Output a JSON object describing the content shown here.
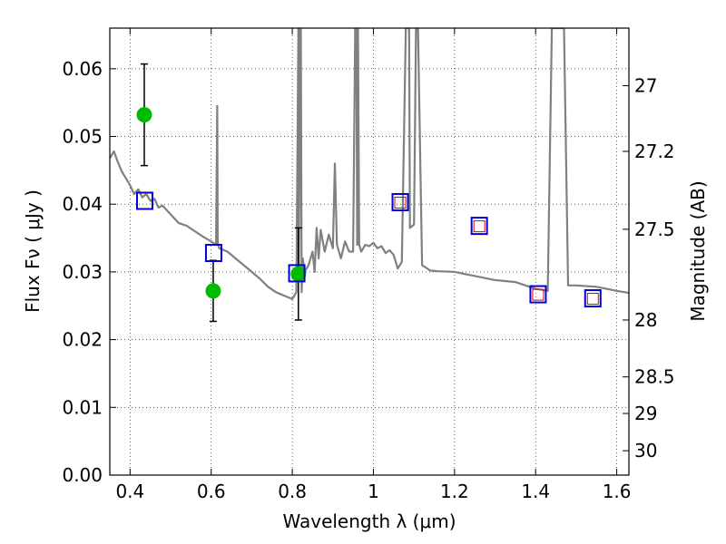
{
  "chart_data": {
    "type": "line",
    "title": "",
    "xlabel": "Wavelength  λ (μm)",
    "ylabel": "Flux  Fν  ( μJy )",
    "ylabel_right": "Magnitude (AB)",
    "xlim": [
      0.35,
      1.63
    ],
    "ylim": [
      0.0,
      0.066
    ],
    "grid": true,
    "x_ticks": [
      0.4,
      0.6,
      0.8,
      1.0,
      1.2,
      1.4,
      1.6
    ],
    "x_tick_labels": [
      "0.4",
      "0.6",
      "0.8",
      "1",
      "1.2",
      "1.4",
      "1.6"
    ],
    "y_ticks": [
      0.0,
      0.01,
      0.02,
      0.03,
      0.04,
      0.05,
      0.06
    ],
    "y_tick_labels": [
      "0.00",
      "0.01",
      "0.02",
      "0.03",
      "0.04",
      "0.05",
      "0.06"
    ],
    "mag_ticks": [
      {
        "label": "27",
        "flux": 0.0575
      },
      {
        "label": "27.2",
        "flux": 0.0478
      },
      {
        "label": "27.5",
        "flux": 0.0363
      },
      {
        "label": "28",
        "flux": 0.0229
      },
      {
        "label": "28.5",
        "flux": 0.0145
      },
      {
        "label": "29",
        "flux": 0.0091
      },
      {
        "label": "30",
        "flux": 0.0036
      }
    ],
    "series": [
      {
        "name": "model SED",
        "kind": "line",
        "color": "#808080",
        "x": [
          0.35,
          0.36,
          0.37,
          0.38,
          0.39,
          0.4,
          0.41,
          0.42,
          0.43,
          0.44,
          0.45,
          0.46,
          0.47,
          0.48,
          0.5,
          0.52,
          0.54,
          0.56,
          0.58,
          0.6,
          0.612,
          0.615,
          0.616,
          0.618,
          0.62,
          0.64,
          0.66,
          0.68,
          0.7,
          0.72,
          0.74,
          0.76,
          0.78,
          0.8,
          0.81,
          0.815,
          0.816,
          0.82,
          0.821,
          0.823,
          0.826,
          0.83,
          0.84,
          0.85,
          0.855,
          0.86,
          0.865,
          0.87,
          0.88,
          0.89,
          0.9,
          0.905,
          0.91,
          0.92,
          0.93,
          0.94,
          0.95,
          0.955,
          0.958,
          0.96,
          0.962,
          0.965,
          0.97,
          0.98,
          0.99,
          1.0,
          1.01,
          1.02,
          1.03,
          1.04,
          1.05,
          1.06,
          1.07,
          1.08,
          1.085,
          1.088,
          1.09,
          1.1,
          1.105,
          1.11,
          1.12,
          1.14,
          1.16,
          1.2,
          1.25,
          1.3,
          1.35,
          1.4,
          1.43,
          1.44,
          1.445,
          1.45,
          1.455,
          1.46,
          1.47,
          1.48,
          1.5,
          1.55,
          1.6,
          1.63
        ],
        "y": [
          0.0468,
          0.0478,
          0.0462,
          0.0448,
          0.0438,
          0.0428,
          0.0415,
          0.0422,
          0.041,
          0.0415,
          0.0405,
          0.0408,
          0.0395,
          0.0398,
          0.0385,
          0.0372,
          0.0368,
          0.036,
          0.0352,
          0.0345,
          0.034,
          0.0545,
          0.0345,
          0.0338,
          0.0335,
          0.033,
          0.032,
          0.031,
          0.03,
          0.029,
          0.0278,
          0.027,
          0.0265,
          0.026,
          0.027,
          0.066,
          0.03,
          0.066,
          0.066,
          0.027,
          0.032,
          0.03,
          0.031,
          0.033,
          0.03,
          0.0365,
          0.032,
          0.0362,
          0.033,
          0.0355,
          0.0335,
          0.046,
          0.034,
          0.032,
          0.0345,
          0.033,
          0.033,
          0.066,
          0.066,
          0.034,
          0.066,
          0.034,
          0.033,
          0.034,
          0.0338,
          0.0343,
          0.0335,
          0.0338,
          0.0328,
          0.0332,
          0.0325,
          0.0305,
          0.0315,
          0.066,
          0.066,
          0.066,
          0.0365,
          0.037,
          0.066,
          0.066,
          0.031,
          0.0302,
          0.0301,
          0.03,
          0.0294,
          0.0288,
          0.0285,
          0.0275,
          0.0272,
          0.066,
          0.066,
          0.066,
          0.066,
          0.066,
          0.066,
          0.028,
          0.028,
          0.0278,
          0.0272,
          0.0269
        ]
      },
      {
        "name": "observed photometry",
        "kind": "scatter",
        "marker": "circle",
        "color": "#00bb00",
        "x": [
          0.435,
          0.605,
          0.815
        ],
        "y": [
          0.0532,
          0.0272,
          0.0297
        ],
        "yerr": [
          0.0075,
          0.0045,
          0.0068
        ]
      },
      {
        "name": "model magnitudes (open squares)",
        "kind": "scatter",
        "marker": "square-open",
        "color": "#0000dd",
        "x": [
          0.435,
          0.605,
          0.81,
          1.065,
          1.26,
          1.405,
          1.54
        ],
        "y": [
          0.0405,
          0.0328,
          0.0298,
          0.0403,
          0.0368,
          0.0267,
          0.0261
        ]
      },
      {
        "name": "model magnitudes (inner squares)",
        "kind": "scatter",
        "marker": "square-open-small",
        "color": "#dd0000",
        "x": [
          1.065,
          1.26,
          1.405,
          1.54
        ],
        "y": [
          0.0403,
          0.0368,
          0.0267,
          0.0261
        ]
      }
    ]
  }
}
